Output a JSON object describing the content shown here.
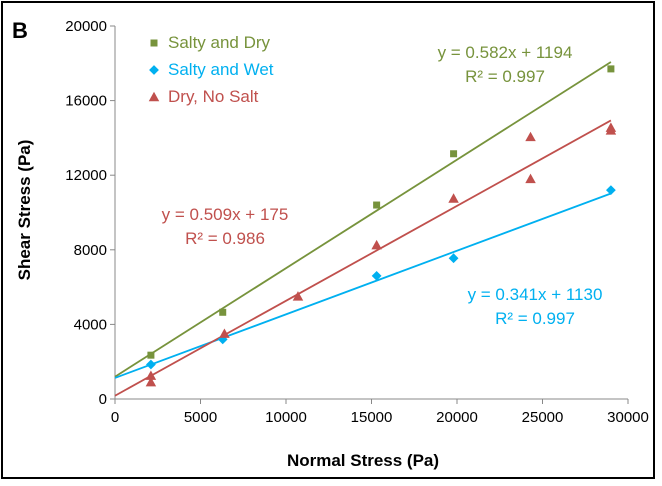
{
  "panel_label": "B",
  "chart_data": {
    "type": "scatter",
    "title": "",
    "xlabel": "Normal Stress (Pa)",
    "ylabel": "Shear Stress (Pa)",
    "xlim": [
      0,
      30000
    ],
    "ylim": [
      0,
      20000
    ],
    "xticks": [
      "0",
      "5000",
      "10000",
      "15000",
      "20000",
      "25000",
      "30000"
    ],
    "yticks": [
      "0",
      "4000",
      "8000",
      "12000",
      "16000",
      "20000"
    ],
    "grid": false,
    "legend_position": "top-left",
    "series": [
      {
        "name": "Salty and Dry",
        "color": "#77933C",
        "marker": "square",
        "points": [
          [
            2100,
            2350
          ],
          [
            6300,
            4650
          ],
          [
            15300,
            10400
          ],
          [
            19800,
            13150
          ],
          [
            29000,
            17700
          ]
        ],
        "trendline": {
          "slope": 0.582,
          "intercept": 1194,
          "equation": "y = 0.582x + 1194",
          "r2": "R² = 0.997"
        }
      },
      {
        "name": "Salty and Wet",
        "color": "#00B0F0",
        "marker": "diamond",
        "points": [
          [
            2100,
            1850
          ],
          [
            6300,
            3200
          ],
          [
            15300,
            6600
          ],
          [
            19800,
            7550
          ],
          [
            29000,
            11200
          ]
        ],
        "trendline": {
          "slope": 0.341,
          "intercept": 1130,
          "equation": "y = 0.341x + 1130",
          "r2": "R² = 0.997"
        }
      },
      {
        "name": "Dry, No Salt",
        "color": "#C0504D",
        "marker": "triangle",
        "points": [
          [
            2100,
            900
          ],
          [
            2100,
            1250
          ],
          [
            6400,
            3500
          ],
          [
            10700,
            5500
          ],
          [
            15300,
            8250
          ],
          [
            19800,
            10750
          ],
          [
            24300,
            14050
          ],
          [
            24300,
            11800
          ],
          [
            29000,
            14550
          ],
          [
            29000,
            14400
          ]
        ],
        "trendline": {
          "slope": 0.509,
          "intercept": 175,
          "equation": "y = 0.509x + 175",
          "r2": "R² = 0.986"
        }
      }
    ]
  }
}
